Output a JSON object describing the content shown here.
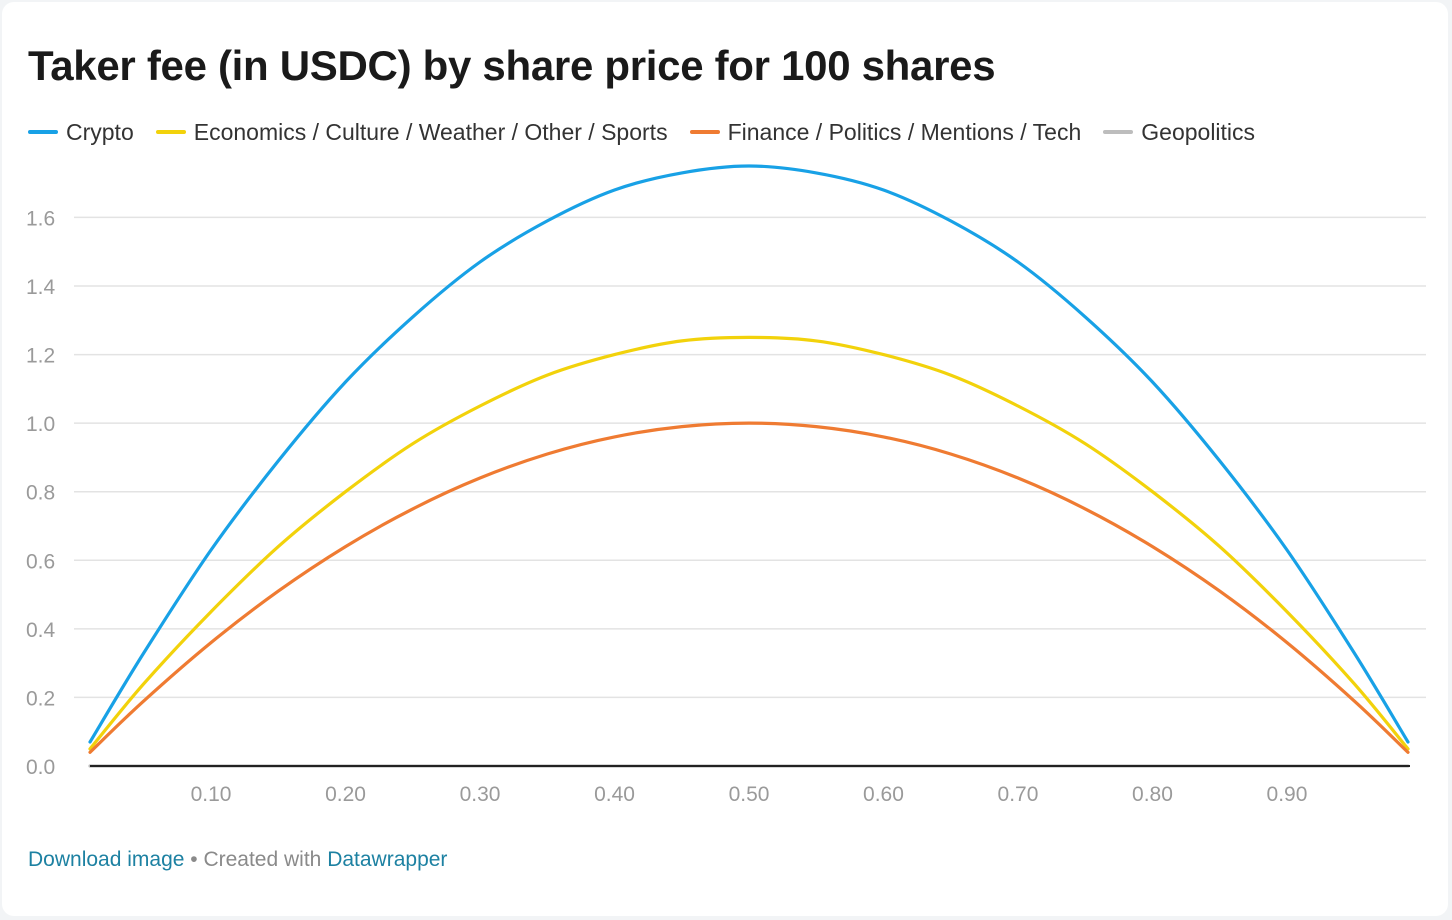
{
  "chart_data": {
    "type": "line",
    "title": "Taker fee (in USDC) by share price for 100 shares",
    "xlabel": "",
    "ylabel": "",
    "xlim": [
      0.01,
      0.99
    ],
    "ylim": [
      0,
      1.75
    ],
    "x_ticks": [
      "0.10",
      "0.20",
      "0.30",
      "0.40",
      "0.50",
      "0.60",
      "0.70",
      "0.80",
      "0.90"
    ],
    "y_ticks": [
      "0.0",
      "0.2",
      "0.4",
      "0.6",
      "0.8",
      "1.0",
      "1.2",
      "1.4",
      "1.6"
    ],
    "grid": true,
    "legend_position": "top-left",
    "x": [
      0.01,
      0.05,
      0.1,
      0.15,
      0.2,
      0.25,
      0.3,
      0.35,
      0.4,
      0.45,
      0.5,
      0.55,
      0.6,
      0.65,
      0.7,
      0.75,
      0.8,
      0.85,
      0.9,
      0.95,
      0.99
    ],
    "series": [
      {
        "name": "Crypto",
        "color": "#18a1e6",
        "values": [
          0.07,
          0.33,
          0.63,
          0.89,
          1.12,
          1.31,
          1.47,
          1.59,
          1.68,
          1.73,
          1.75,
          1.73,
          1.68,
          1.59,
          1.47,
          1.31,
          1.12,
          0.89,
          0.63,
          0.33,
          0.07
        ]
      },
      {
        "name": "Economics / Culture / Weather / Other / Sports",
        "color": "#f2d20b",
        "values": [
          0.05,
          0.24,
          0.45,
          0.64,
          0.8,
          0.94,
          1.05,
          1.14,
          1.2,
          1.24,
          1.25,
          1.24,
          1.2,
          1.14,
          1.05,
          0.94,
          0.8,
          0.64,
          0.45,
          0.24,
          0.05
        ]
      },
      {
        "name": "Finance / Politics / Mentions / Tech",
        "color": "#ef7b32",
        "values": [
          0.04,
          0.19,
          0.36,
          0.51,
          0.64,
          0.75,
          0.84,
          0.91,
          0.96,
          0.99,
          1.0,
          0.99,
          0.96,
          0.91,
          0.84,
          0.75,
          0.64,
          0.51,
          0.36,
          0.19,
          0.04
        ]
      },
      {
        "name": "Geopolitics",
        "color": "#bdbdbd",
        "values": [
          0,
          0,
          0,
          0,
          0,
          0,
          0,
          0,
          0,
          0,
          0,
          0,
          0,
          0,
          0,
          0,
          0,
          0,
          0,
          0,
          0
        ]
      }
    ]
  },
  "footer": {
    "download_label": "Download image",
    "separator": " • Created with ",
    "tool_label": "Datawrapper"
  }
}
